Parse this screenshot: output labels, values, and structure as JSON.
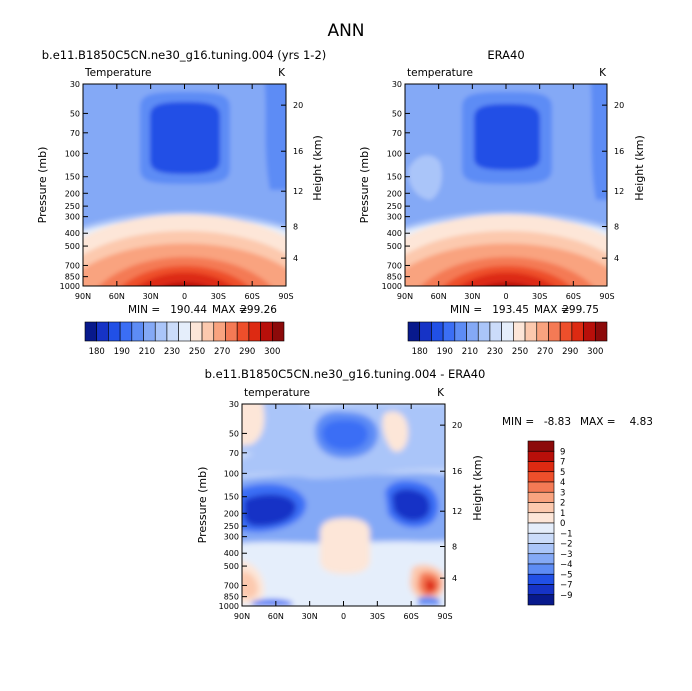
{
  "page_title": "ANN",
  "chart_data": [
    {
      "type": "heatmap",
      "panel": "model",
      "title": "b.e11.B1850C5CN.ne30_g16.tuning.004 (yrs 1-2)",
      "variable": "Temperature",
      "units": "K",
      "xlabel": "",
      "ylabel": "Pressure (mb)",
      "y2label": "Height (km)",
      "x_ticks": [
        "90N",
        "60N",
        "30N",
        "0",
        "30S",
        "60S",
        "90S"
      ],
      "pressure_ticks": [
        "30",
        "50",
        "70",
        "100",
        "150",
        "200",
        "250",
        "300",
        "400",
        "500",
        "700",
        "850",
        "1000"
      ],
      "height_ticks": [
        "20",
        "16",
        "12",
        "8",
        "4"
      ],
      "ylim": [
        30,
        1000
      ],
      "stats": {
        "min_label": "MIN =",
        "min": "190.44",
        "max_label": "MAX =",
        "max": "299.26"
      },
      "colorbar_levels": [
        180,
        190,
        200,
        210,
        220,
        230,
        240,
        250,
        260,
        270,
        280,
        290,
        300
      ],
      "colorbar_labels": [
        "180",
        "190",
        "210",
        "230",
        "250",
        "270",
        "290",
        "300"
      ]
    },
    {
      "type": "heatmap",
      "panel": "obs",
      "title": "ERA40",
      "variable": "temperature",
      "units": "K",
      "xlabel": "",
      "ylabel": "Pressure (mb)",
      "y2label": "Height (km)",
      "x_ticks": [
        "90N",
        "60N",
        "30N",
        "0",
        "30S",
        "60S",
        "90S"
      ],
      "pressure_ticks": [
        "30",
        "50",
        "70",
        "100",
        "150",
        "200",
        "250",
        "300",
        "400",
        "500",
        "700",
        "850",
        "1000"
      ],
      "height_ticks": [
        "20",
        "16",
        "12",
        "8",
        "4"
      ],
      "ylim": [
        30,
        1000
      ],
      "stats": {
        "min_label": "MIN =",
        "min": "193.45",
        "max_label": "MAX =",
        "max": "299.75"
      },
      "colorbar_levels": [
        180,
        190,
        200,
        210,
        220,
        230,
        240,
        250,
        260,
        270,
        280,
        290,
        300
      ],
      "colorbar_labels": [
        "180",
        "190",
        "210",
        "230",
        "250",
        "270",
        "290",
        "300"
      ]
    },
    {
      "type": "heatmap",
      "panel": "difference",
      "title": "b.e11.B1850C5CN.ne30_g16.tuning.004 - ERA40",
      "variable": "temperature",
      "units": "K",
      "xlabel": "",
      "ylabel": "Pressure (mb)",
      "y2label": "Height (km)",
      "x_ticks": [
        "90N",
        "60N",
        "30N",
        "0",
        "30S",
        "60S",
        "90S"
      ],
      "pressure_ticks": [
        "30",
        "50",
        "70",
        "100",
        "150",
        "200",
        "250",
        "300",
        "400",
        "500",
        "700",
        "850",
        "1000"
      ],
      "height_ticks": [
        "20",
        "16",
        "12",
        "8",
        "4"
      ],
      "ylim": [
        30,
        1000
      ],
      "stats": {
        "min_label": "MIN =",
        "min": "-8.83",
        "max_label": "MAX =",
        "max": "4.83"
      },
      "colorbar_levels": [
        9,
        7,
        5,
        4,
        3,
        2,
        1,
        0,
        -1,
        -2,
        -3,
        -4,
        -5,
        -7,
        -9
      ],
      "colorbar_labels": [
        "9",
        "7",
        "5",
        "4",
        "3",
        "2",
        "1",
        "0",
        "−1",
        "−2",
        "−3",
        "−4",
        "−5",
        "−7",
        "−9"
      ]
    }
  ],
  "colors": {
    "temperature_scale": [
      "#08198c",
      "#1633c6",
      "#2150e6",
      "#3b6ef5",
      "#5d8cf5",
      "#84a9f6",
      "#aac5f9",
      "#cbdcfa",
      "#e5eefb",
      "#fde6d8",
      "#fcc9ae",
      "#f9a37f",
      "#f47a55",
      "#ee4f2b",
      "#dd2a12",
      "#b80f0a",
      "#8c0a0a"
    ],
    "difference_scale": [
      "#8c0a0a",
      "#b80f0a",
      "#dd2a12",
      "#ee4f2b",
      "#f47a55",
      "#f9a37f",
      "#fcc9ae",
      "#fde6d8",
      "#e5eefb",
      "#cbdcfa",
      "#aac5f9",
      "#84a9f6",
      "#5d8cf5",
      "#2150e6",
      "#1633c6",
      "#08198c"
    ]
  }
}
